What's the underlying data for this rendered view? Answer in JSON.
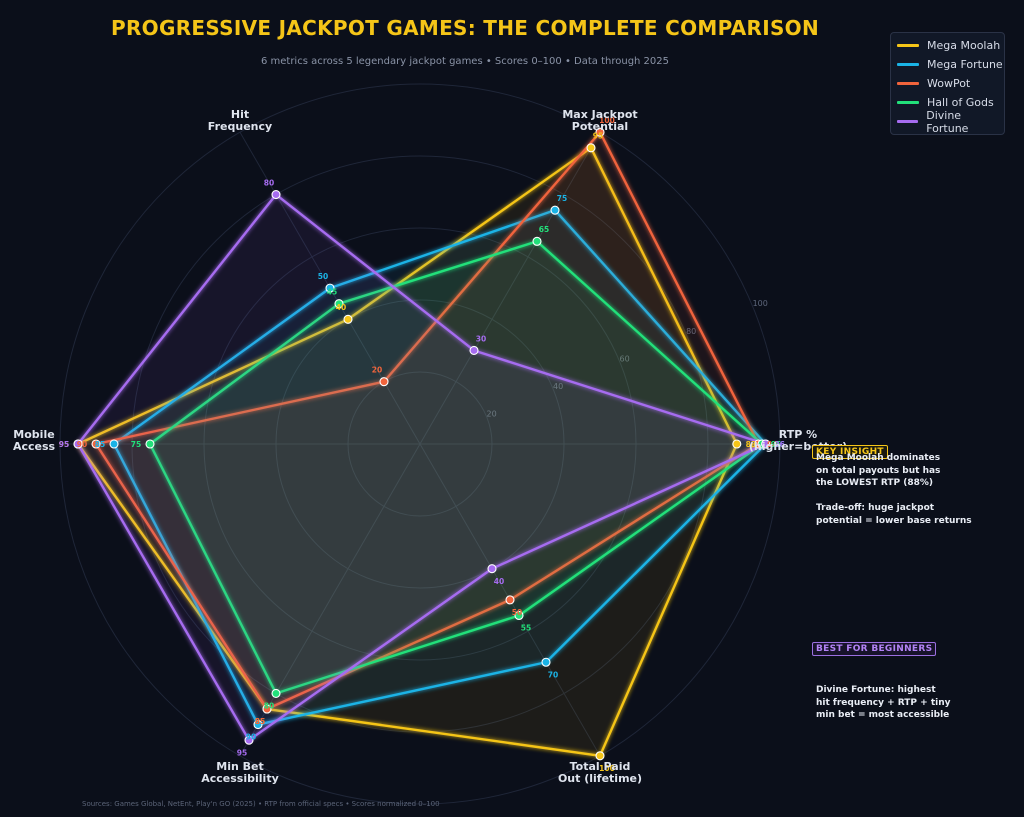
{
  "header": {
    "title": "PROGRESSIVE JACKPOT GAMES: THE COMPLETE COMPARISON",
    "subtitle": "6 metrics across 5 legendary jackpot games  •  Scores 0–100  •  Data through 2025"
  },
  "annotations": {
    "key_badge": "KEY INSIGHT",
    "key_text": "Mega Moolah dominates\non total payouts but has\nthe LOWEST RTP (88%)\n\nTrade-off: huge jackpot\npotential = lower base returns",
    "beginner_badge": "BEST FOR BEGINNERS",
    "beginner_text": "Divine Fortune: highest\nhit frequency + RTP + tiny\nmin bet = most accessible"
  },
  "footer": "Sources: Games Global, NetEnt, Play'n GO (2025)  •  RTP from official specs  •  Scores normalized 0–100",
  "chart_data": {
    "type": "radar",
    "axes": [
      "RTP %\n(higher=better)",
      "Max Jackpot\nPotential",
      "Hit\nFrequency",
      "Mobile\nAccess",
      "Min Bet\nAccessibility",
      "Total Paid\nOut (lifetime)"
    ],
    "rlim": [
      0,
      100
    ],
    "rticks": [
      20,
      40,
      60,
      80,
      100
    ],
    "grid": true,
    "legend_position": "top-right",
    "series": [
      {
        "name": "Mega Moolah",
        "color": "#f5c518",
        "values": [
          88,
          95,
          40,
          95,
          85,
          100
        ]
      },
      {
        "name": "Mega Fortune",
        "color": "#1ab3e6",
        "values": [
          96,
          75,
          50,
          85,
          90,
          70
        ]
      },
      {
        "name": "WowPot",
        "color": "#f0643c",
        "values": [
          94,
          100,
          20,
          90,
          85,
          50
        ]
      },
      {
        "name": "Hall of Gods",
        "color": "#22e07a",
        "values": [
          95,
          65,
          45,
          75,
          80,
          55
        ]
      },
      {
        "name": "Divine Fortune",
        "color": "#a66cf0",
        "values": [
          96,
          30,
          80,
          95,
          95,
          40
        ]
      }
    ]
  }
}
